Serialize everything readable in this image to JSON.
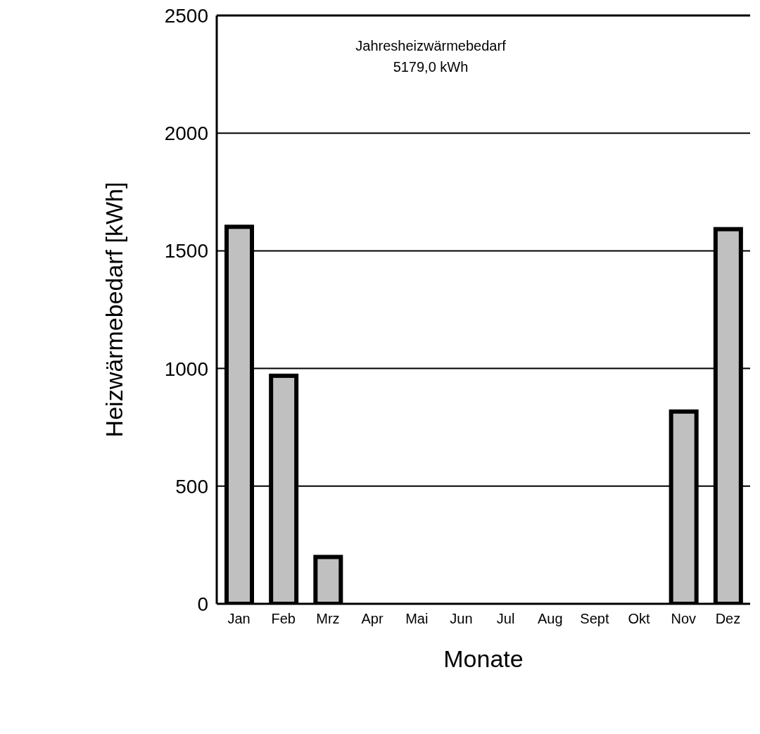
{
  "chart_data": {
    "type": "bar",
    "xlabel": "Monate",
    "ylabel": "Heizwärmebedarf [kWh]",
    "categories": [
      "Jan",
      "Feb",
      "Mrz",
      "Apr",
      "Mai",
      "Jun",
      "Jul",
      "Aug",
      "Sept",
      "Okt",
      "Nov",
      "Dez"
    ],
    "values": [
      1602,
      969,
      199,
      0,
      0,
      0,
      0,
      0,
      0,
      0,
      817,
      1592
    ],
    "color": "#c0c0c0",
    "ylim": [
      0,
      2500
    ],
    "yticks": [
      0,
      500,
      1000,
      1500,
      2000,
      2500
    ],
    "grid": "y",
    "annotations": [
      "Jahresheizwärmebedarf",
      "5179,0 kWh"
    ]
  }
}
